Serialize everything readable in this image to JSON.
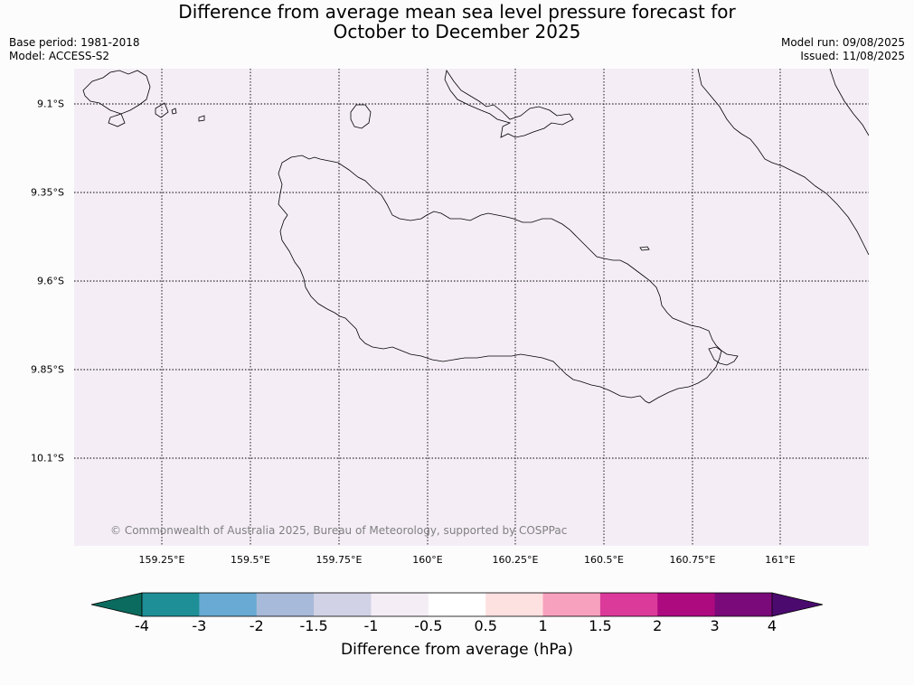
{
  "title": {
    "line1": "Difference from average mean sea level pressure forecast for",
    "line2": "October to December 2025"
  },
  "meta": {
    "base_period": "Base period: 1981-2018",
    "model": "Model: ACCESS-S2",
    "model_run": "Model run: 09/08/2025",
    "issued": "Issued: 11/08/2025"
  },
  "map": {
    "copyright": "© Commonwealth of Australia 2025, Bureau of Meteorology, supported by COSPPac",
    "lat_labels": [
      "9.1°S",
      "9.35°S",
      "9.6°S",
      "9.85°S",
      "10.1°S"
    ],
    "lon_labels": [
      "159.25°E",
      "159.5°E",
      "159.75°E",
      "160°E",
      "160.25°E",
      "160.5°E",
      "160.75°E",
      "161°E"
    ],
    "fill_color": "#f4edf6",
    "anomaly_category": "-1 to -0.5"
  },
  "colorbar": {
    "label": "Difference from average (hPa)",
    "ticks": [
      "-4",
      "-3",
      "-2",
      "-1.5",
      "-1",
      "-0.5",
      "0.5",
      "1",
      "1.5",
      "2",
      "3",
      "4"
    ],
    "under_color": "#0a6b5e",
    "over_color": "#4a0a6e",
    "colors": [
      "#1e8f96",
      "#68aad3",
      "#a8bad9",
      "#d2d2e6",
      "#f4edf6",
      "#ffffff",
      "#fde0e0",
      "#f7a1be",
      "#dc3a9b",
      "#ad0a80",
      "#7a0a7a"
    ]
  }
}
